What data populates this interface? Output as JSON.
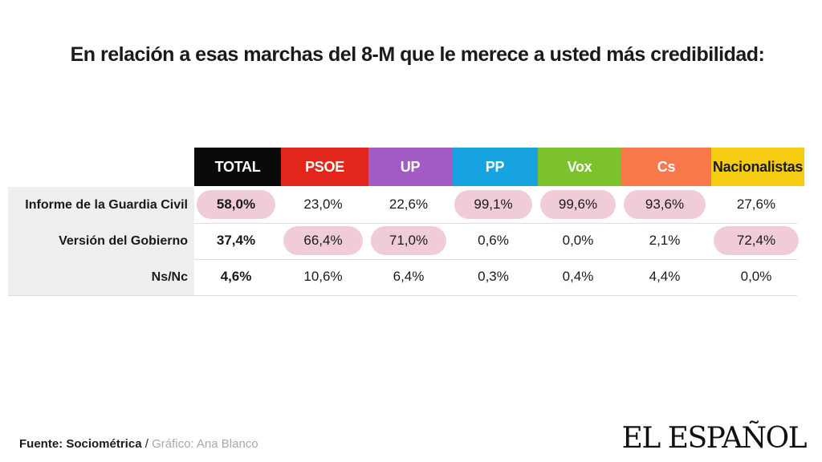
{
  "chart_data": {
    "type": "table",
    "title": "En relación a esas marchas del 8-M que le merece a usted más credibilidad:",
    "columns": [
      {
        "label": "TOTAL",
        "color": "#0a0a0a",
        "text_color": "#ffffff"
      },
      {
        "label": "PSOE",
        "color": "#e2261c",
        "text_color": "#ffffff"
      },
      {
        "label": "UP",
        "color": "#a35bc4",
        "text_color": "#ffffff"
      },
      {
        "label": "PP",
        "color": "#17a2e0",
        "text_color": "#ffffff"
      },
      {
        "label": "Vox",
        "color": "#7cc22c",
        "text_color": "#ffffff"
      },
      {
        "label": "Cs",
        "color": "#f7784a",
        "text_color": "#ffffff"
      },
      {
        "label": "Nacionalistas",
        "color": "#f5cc12",
        "text_color": "#1a1a1a"
      }
    ],
    "rows": [
      {
        "label": "Informe de la Guardia Civil",
        "values": [
          "58,0%",
          "23,0%",
          "22,6%",
          "99,1%",
          "99,6%",
          "93,6%",
          "27,6%"
        ],
        "highlight": [
          true,
          false,
          false,
          true,
          true,
          true,
          false
        ]
      },
      {
        "label": "Versión del Gobierno",
        "values": [
          "37,4%",
          "66,4%",
          "71,0%",
          "0,6%",
          "0,0%",
          "2,1%",
          "72,4%"
        ],
        "highlight": [
          false,
          true,
          true,
          false,
          false,
          false,
          true
        ]
      },
      {
        "label": "Ns/Nc",
        "values": [
          "4,6%",
          "10,6%",
          "6,4%",
          "0,3%",
          "0,4%",
          "4,4%",
          "0,0%"
        ],
        "highlight": [
          false,
          false,
          false,
          false,
          false,
          false,
          false
        ]
      }
    ],
    "highlight_color": "#f0ccdb"
  },
  "footer": {
    "source_label": "Fuente: Sociométrica",
    "separator": " / ",
    "credit": "Gráfico: Ana Blanco"
  },
  "logo": {
    "text": "EL ESPAÑOL"
  }
}
